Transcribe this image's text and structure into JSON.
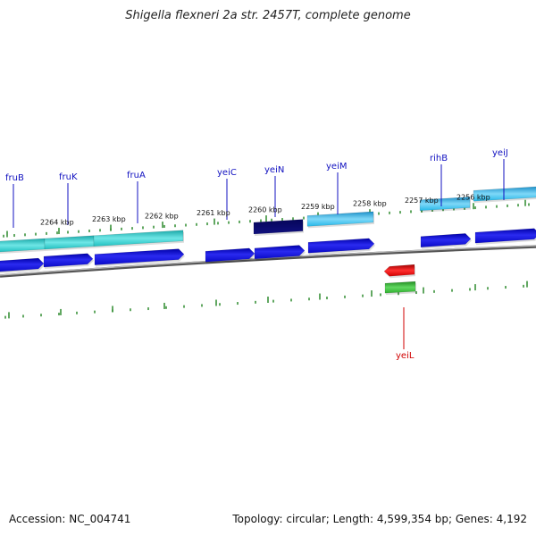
{
  "title": "Shigella flexneri 2a str. 2457T, complete genome",
  "footer": {
    "accession": "Accession: NC_004741",
    "summary": "Topology: circular; Length: 4,599,354 bp; Genes: 4,192"
  },
  "colors": {
    "backbone": "#7a7a7a",
    "tick": "#2e8b2e",
    "reverse_gene": "#1010e0",
    "highlight_gene": "#0b0b70",
    "forward_feature_teal": "#20c0c0",
    "forward_feature_cyan": "#25b8e8",
    "rna_red": "#e00000",
    "rna_green": "#30b030",
    "label_blue": "#1010c0",
    "label_red": "#d00000"
  },
  "scale_labels": [
    "2264 kbp",
    "2263 kbp",
    "2262 kbp",
    "2261 kbp",
    "2260 kbp",
    "2259 kbp",
    "2258 kbp",
    "2257 kbp",
    "2256 kbp"
  ],
  "gene_labels": [
    {
      "text": "fruB",
      "color": "blue"
    },
    {
      "text": "fruK",
      "color": "blue"
    },
    {
      "text": "fruA",
      "color": "blue"
    },
    {
      "text": "yeiC",
      "color": "blue"
    },
    {
      "text": "yeiN",
      "color": "blue"
    },
    {
      "text": "yeiM",
      "color": "blue"
    },
    {
      "text": "rihB",
      "color": "blue"
    },
    {
      "text": "yeiJ",
      "color": "blue"
    },
    {
      "text": "yeiL",
      "color": "red"
    }
  ]
}
